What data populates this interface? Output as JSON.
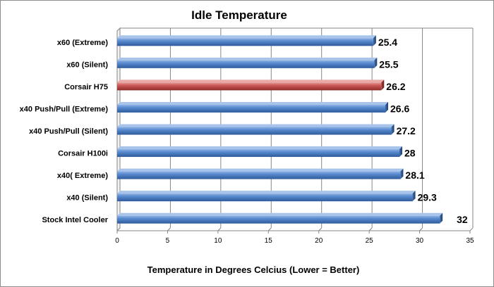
{
  "chart_data": {
    "type": "bar",
    "orientation": "horizontal",
    "title": "Idle Temperature",
    "xlabel": "Temperature in Degrees Celcius (Lower = Better)",
    "ylabel": "",
    "xlim": [
      0,
      35
    ],
    "xticks": [
      0,
      5,
      10,
      15,
      20,
      25,
      30,
      35
    ],
    "grid": "vertical",
    "legend": "none",
    "categories": [
      "x60 (Extreme)",
      "x60 (Silent)",
      "Corsair H75",
      "x40 Push/Pull (Extreme)",
      "x40 Push/Pull (Silent)",
      "Corsair H100i",
      "x40( Extreme)",
      "x40 (Silent)",
      "Stock Intel Cooler"
    ],
    "values": [
      25.4,
      25.5,
      26.2,
      26.6,
      27.2,
      28,
      28.1,
      29.3,
      32
    ],
    "value_labels": [
      "25.4",
      "25.5",
      "26.2",
      "26.6",
      "27.2",
      "28",
      "28.1",
      "29.3",
      "32"
    ],
    "colors": {
      "default_bar": "#4a7ebb",
      "highlight_bar": "#c0504d",
      "grid": "#868686",
      "axis": "#868686"
    },
    "highlight_index": 2
  }
}
